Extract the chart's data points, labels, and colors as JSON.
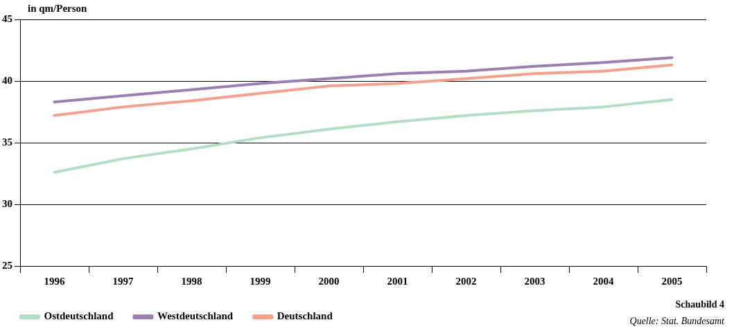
{
  "chart_data": {
    "type": "line",
    "ylabel": "in qm/Person",
    "categories": [
      "1996",
      "1997",
      "1998",
      "1999",
      "2000",
      "2001",
      "2002",
      "2003",
      "2004",
      "2005"
    ],
    "series": [
      {
        "name": "Ostdeutschland",
        "color": "#b2dfc4",
        "values": [
          32.6,
          33.7,
          34.5,
          35.4,
          36.1,
          36.7,
          37.2,
          37.6,
          37.9,
          38.5
        ]
      },
      {
        "name": "Westdeutschland",
        "color": "#9a7fb0",
        "values": [
          38.3,
          38.8,
          39.3,
          39.8,
          40.2,
          40.6,
          40.8,
          41.2,
          41.5,
          41.9
        ]
      },
      {
        "name": "Deutschland",
        "color": "#f4a08c",
        "values": [
          37.2,
          37.9,
          38.4,
          39.0,
          39.6,
          39.8,
          40.2,
          40.6,
          40.8,
          41.3
        ]
      }
    ],
    "ylim": [
      25,
      45
    ],
    "yticks": [
      25,
      30,
      35,
      40,
      45
    ],
    "grid": "y",
    "legend": "bottom left",
    "marker": "none",
    "line_style": "solid",
    "annotations": [
      "Schaubild 4",
      "Quelle: Stat. Bundesamt"
    ]
  }
}
